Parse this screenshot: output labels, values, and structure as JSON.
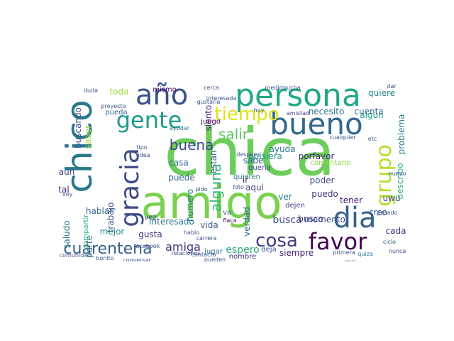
{
  "wordcloud": {
    "words": [
      {
        "text": "chica",
        "color": "#6ccd5a"
      },
      {
        "text": "amigo",
        "color": "#7ad151"
      },
      {
        "text": "persona",
        "color": "#22a884"
      },
      {
        "text": "bueno",
        "color": "#31688e"
      },
      {
        "text": "chico",
        "color": "#2a788e"
      },
      {
        "text": "año",
        "color": "#3b528b"
      },
      {
        "text": "gente",
        "color": "#1f9a8a"
      },
      {
        "text": "dia",
        "color": "#33638d"
      },
      {
        "text": "gracia",
        "color": "#3e4a89"
      },
      {
        "text": "favor",
        "color": "#440154"
      },
      {
        "text": "cuarentena",
        "color": "#355f8d"
      },
      {
        "text": "grupo",
        "color": "#b5de2b"
      },
      {
        "text": "tiempo",
        "color": "#dde318"
      },
      {
        "text": "cosa",
        "color": "#443983"
      },
      {
        "text": "buena",
        "color": "#3f4889"
      },
      {
        "text": "salir",
        "color": "#5ec962"
      },
      {
        "text": "amiga",
        "color": "#46327e"
      },
      {
        "text": "alguna",
        "color": "#35b779"
      },
      {
        "text": "busca",
        "color": "#3e4c8a"
      },
      {
        "text": "espero",
        "color": "#29af7f"
      },
      {
        "text": "quisiera",
        "color": "#1f978b"
      },
      {
        "text": "porfavor",
        "color": "#482878"
      },
      {
        "text": "necesito",
        "color": "#2c728e"
      },
      {
        "text": "toda",
        "color": "#9fda3a"
      },
      {
        "text": "hablar",
        "color": "#31688e"
      },
      {
        "text": "buscando",
        "color": "#3b528b"
      },
      {
        "text": "interesado",
        "color": "#2a788e"
      },
      {
        "text": "momento",
        "color": "#3e4a89"
      },
      {
        "text": "busco",
        "color": "#414487"
      },
      {
        "text": "vida",
        "color": "#38598c"
      },
      {
        "text": "puede",
        "color": "#33638d"
      },
      {
        "text": "casa",
        "color": "#2f6c8e"
      },
      {
        "text": "mejor",
        "color": "#21918c"
      },
      {
        "text": "gusta",
        "color": "#472d7b"
      },
      {
        "text": "saludo",
        "color": "#2d708e"
      },
      {
        "text": "trabajo",
        "color": "#3b528b"
      },
      {
        "text": "siempre",
        "color": "#481f70"
      },
      {
        "text": "tener",
        "color": "#482173"
      },
      {
        "text": "puedo",
        "color": "#46337f"
      },
      {
        "text": "poder",
        "color": "#3d4e8a"
      },
      {
        "text": "quiere",
        "color": "#26828e"
      },
      {
        "text": "algun",
        "color": "#1fa188"
      },
      {
        "text": "cuenta",
        "color": "#2e6f8e"
      },
      {
        "text": "creo",
        "color": "#3b528b"
      },
      {
        "text": "cada",
        "color": "#472c7a"
      },
      {
        "text": "verdad",
        "color": "#31688e"
      },
      {
        "text": "sabe",
        "color": "#33638d"
      },
      {
        "text": "aqui",
        "color": "#3e4a89"
      },
      {
        "text": "ver",
        "color": "#2a788e"
      },
      {
        "text": "siento",
        "color": "#482475"
      },
      {
        "text": "ayuda",
        "color": "#2a788e"
      },
      {
        "text": "problema",
        "color": "#26828e"
      },
      {
        "text": "describo",
        "color": "#2db27d"
      },
      {
        "text": "saber",
        "color": "#9fda3a"
      },
      {
        "text": "estan",
        "color": "#3b528b"
      },
      {
        "text": "comentario",
        "color": "#8fd744"
      },
      {
        "text": "ir",
        "color": "#440154"
      },
      {
        "text": "aun",
        "color": "#3f4889"
      },
      {
        "text": "tal",
        "color": "#472878"
      },
      {
        "text": "uwu",
        "color": "#3e4a89"
      },
      {
        "text": "numero",
        "color": "#2a788e"
      },
      {
        "text": "parte",
        "color": "#2a788e"
      },
      {
        "text": "dejen",
        "color": "#443983"
      },
      {
        "text": "deja",
        "color": "#3b528b"
      },
      {
        "text": "mismo",
        "color": "#471063"
      },
      {
        "text": "juego",
        "color": "#440154"
      },
      {
        "text": "pueda",
        "color": "#33638d"
      },
      {
        "text": "vez",
        "color": "#3f4889"
      },
      {
        "text": "va",
        "color": "#31688e"
      },
      {
        "text": "quieren",
        "color": "#2a788e"
      },
      {
        "text": "queria",
        "color": "#3e4a89"
      },
      {
        "text": "nombre",
        "color": "#46327e"
      },
      {
        "text": "jugar",
        "color": "#2c728e"
      },
      {
        "text": "contacto",
        "color": "#3b528b"
      },
      {
        "text": "facebook",
        "color": "#3e4a89"
      },
      {
        "text": "flaca",
        "color": "#440154"
      },
      {
        "text": "foto",
        "color": "#3b528b"
      },
      {
        "text": "compartir",
        "color": "#2db27d"
      },
      {
        "text": "proyecto",
        "color": "#3b528b"
      },
      {
        "text": "gustaria",
        "color": "#3b528b"
      },
      {
        "text": "interesada",
        "color": "#3b528b"
      },
      {
        "text": "amistad",
        "color": "#414487"
      },
      {
        "text": "mucha",
        "color": "#3b528b"
      },
      {
        "text": "medio",
        "color": "#3b528b"
      },
      {
        "text": "primera",
        "color": "#3b528b"
      },
      {
        "text": "ayudar",
        "color": "#2a788e"
      },
      {
        "text": "despues",
        "color": "#3b528b"
      },
      {
        "text": "quiza",
        "color": "#2a788e"
      },
      {
        "text": "hablo",
        "color": "#3b528b"
      },
      {
        "text": "carrera",
        "color": "#3b528b"
      },
      {
        "text": "idea",
        "color": "#3b528b"
      },
      {
        "text": "tipo",
        "color": "#3b528b"
      },
      {
        "text": "conversar",
        "color": "#3b528b"
      },
      {
        "text": "ciclo",
        "color": "#3b528b"
      },
      {
        "text": "nunca",
        "color": "#3b528b"
      },
      {
        "text": "pasado",
        "color": "#3b528b"
      },
      {
        "text": "cerca",
        "color": "#3b528b"
      },
      {
        "text": "pueden",
        "color": "#3b528b"
      },
      {
        "text": "hoy",
        "color": "#3b528b"
      },
      {
        "text": "voy",
        "color": "#3b528b"
      },
      {
        "text": "pido",
        "color": "#3b528b"
      },
      {
        "text": "relaciones",
        "color": "#3b528b"
      },
      {
        "text": "comunidad",
        "color": "#3b528b"
      },
      {
        "text": "bonito",
        "color": "#3b528b"
      },
      {
        "text": "mal",
        "color": "#3b528b"
      },
      {
        "text": "nuevo",
        "color": "#3b528b"
      },
      {
        "text": "cualquier",
        "color": "#3b528b"
      },
      {
        "text": "duda",
        "color": "#3b528b"
      },
      {
        "text": "etc",
        "color": "#3b528b"
      },
      {
        "text": "dar",
        "color": "#3b528b"
      }
    ]
  }
}
